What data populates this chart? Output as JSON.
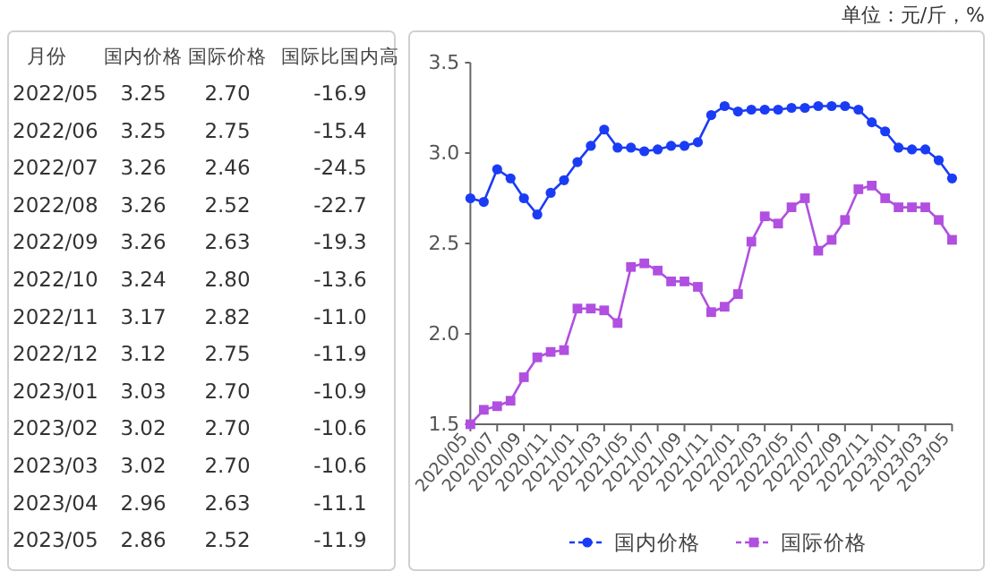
{
  "chart_data": [
    {
      "type": "other",
      "xlabel": "月份",
      "categories": [
        "2022/05",
        "2022/06",
        "2022/07",
        "2022/08",
        "2022/09",
        "2022/10",
        "2022/11",
        "2022/12",
        "2023/01",
        "2023/02",
        "2023/03",
        "2023/04",
        "2023/05"
      ],
      "data_labels": true,
      "series": [
        {
          "name": "国内价格",
          "values": [
            3.25,
            3.25,
            3.26,
            3.26,
            3.26,
            3.24,
            3.17,
            3.12,
            3.03,
            3.02,
            3.02,
            2.96,
            2.86
          ],
          "value_labels": [
            "3.25",
            "3.25",
            "3.26",
            "3.26",
            "3.26",
            "3.24",
            "3.17",
            "3.12",
            "3.03",
            "3.02",
            "3.02",
            "2.96",
            "2.86"
          ]
        },
        {
          "name": "国际价格",
          "values": [
            2.7,
            2.75,
            2.46,
            2.52,
            2.63,
            2.8,
            2.82,
            2.75,
            2.7,
            2.7,
            2.7,
            2.63,
            2.52
          ],
          "value_labels": [
            "2.70",
            "2.75",
            "2.46",
            "2.52",
            "2.63",
            "2.80",
            "2.82",
            "2.75",
            "2.70",
            "2.70",
            "2.70",
            "2.63",
            "2.52"
          ]
        },
        {
          "name": "国际比国内高",
          "values": [
            -16.9,
            -15.4,
            -24.5,
            -22.7,
            -19.3,
            -13.6,
            -11.0,
            -11.9,
            -10.9,
            -10.6,
            -10.6,
            -11.1,
            -11.9
          ],
          "value_labels": [
            "-16.9",
            "-15.4",
            "-24.5",
            "-22.7",
            "-19.3",
            "-13.6",
            "-11.0",
            "-11.9",
            "-10.9",
            "-10.6",
            "-10.6",
            "-11.1",
            "-11.9"
          ]
        }
      ]
    },
    {
      "type": "line",
      "annotations": [
        "单位：元/斤，%"
      ],
      "categories": [
        "2020/05",
        null,
        "2020/07",
        null,
        "2020/09",
        null,
        "2020/11",
        null,
        "2021/01",
        null,
        "2021/03",
        null,
        "2021/05",
        null,
        "2021/07",
        null,
        "2021/09",
        null,
        "2021/11",
        null,
        "2022/01",
        null,
        "2022/03",
        null,
        "2022/05",
        null,
        "2022/07",
        null,
        "2022/09",
        null,
        "2022/11",
        null,
        "2023/01",
        null,
        "2023/03",
        null,
        "2023/05"
      ],
      "ylim": [
        1.5,
        3.5
      ],
      "yticks": [
        1.5,
        {
          "value": 2,
          "label": "2.0"
        },
        2.5,
        {
          "value": 3,
          "label": "3.0"
        },
        3.5
      ],
      "legend": "bottom",
      "series": [
        {
          "name": "国内价格",
          "color": "#1a3cf5",
          "marker": "circle",
          "values": [
            2.75,
            2.73,
            2.91,
            2.86,
            2.75,
            2.66,
            2.78,
            2.85,
            2.95,
            3.04,
            3.13,
            3.03,
            3.03,
            3.01,
            3.02,
            3.04,
            3.04,
            3.06,
            3.21,
            3.26,
            3.23,
            3.24,
            3.24,
            3.24,
            3.25,
            3.25,
            3.26,
            3.26,
            3.26,
            3.24,
            3.17,
            3.12,
            3.03,
            3.02,
            3.02,
            2.96,
            2.86
          ]
        },
        {
          "name": "国际价格",
          "color": "#b04fe0",
          "marker": "square",
          "values": [
            1.5,
            1.58,
            1.6,
            1.63,
            1.76,
            1.87,
            1.9,
            1.91,
            2.14,
            2.14,
            2.13,
            2.06,
            2.37,
            2.39,
            2.35,
            2.29,
            2.29,
            2.26,
            2.12,
            2.15,
            2.22,
            2.51,
            2.65,
            2.61,
            2.7,
            2.75,
            2.46,
            2.52,
            2.63,
            2.8,
            2.82,
            2.75,
            2.7,
            2.7,
            2.7,
            2.63,
            2.52
          ]
        }
      ]
    }
  ]
}
